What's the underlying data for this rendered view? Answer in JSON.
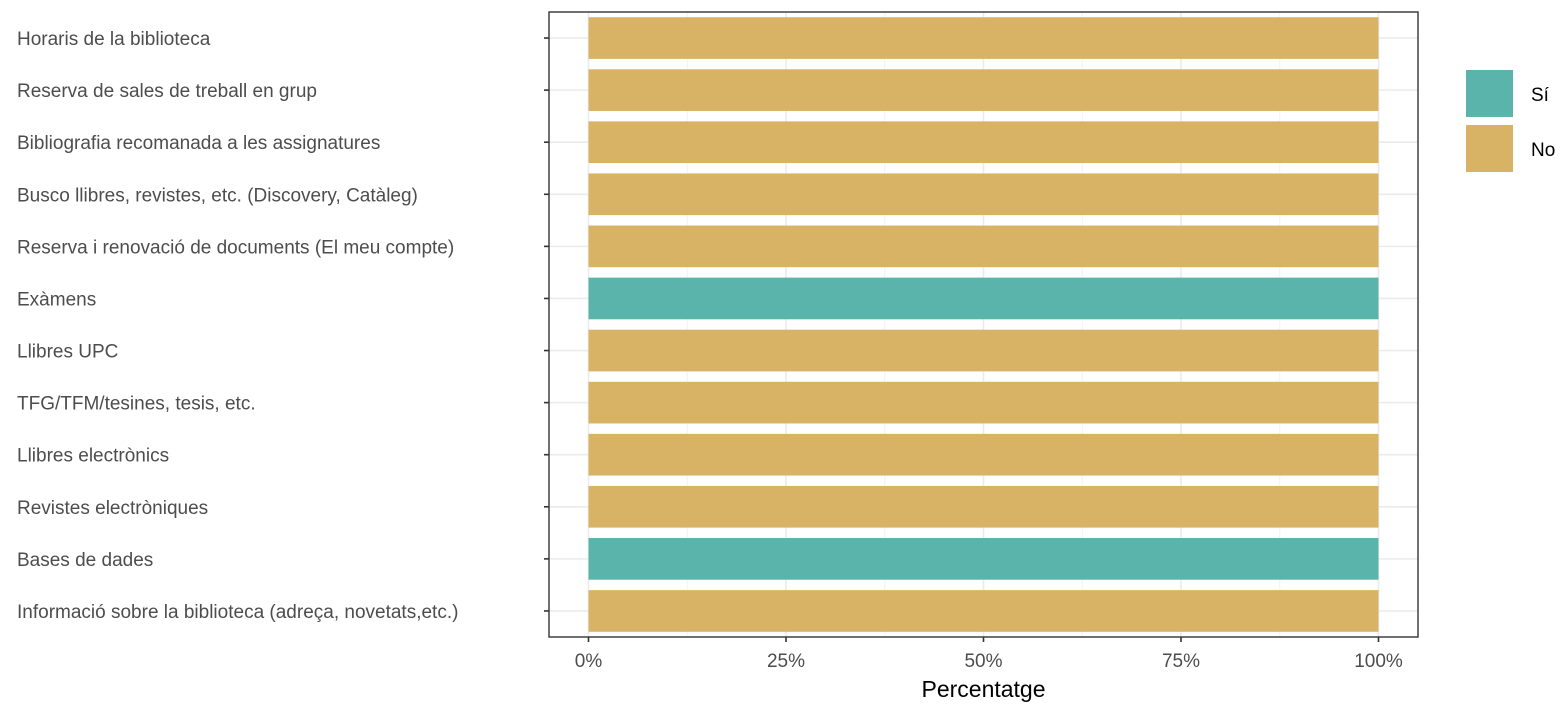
{
  "chart_data": {
    "type": "bar",
    "orientation": "horizontal",
    "stacked": true,
    "categories": [
      "Horaris de la biblioteca",
      "Reserva de sales de treball en grup",
      "Bibliografia recomanada a les assignatures",
      "Busco llibres, revistes, etc. (Discovery, Catàleg)",
      "Reserva i renovació de documents (El meu compte)",
      "Exàmens",
      "Llibres UPC",
      "TFG/TFM/tesines, tesis, etc.",
      "Llibres electrònics",
      "Revistes electròniques",
      "Bases de dades",
      "Informació sobre la biblioteca (adreça, novetats,etc.)"
    ],
    "series": [
      {
        "name": "Sí",
        "color": "#5ab4ac",
        "values": [
          0,
          0,
          0,
          0,
          0,
          100,
          0,
          0,
          0,
          0,
          100,
          0
        ]
      },
      {
        "name": "No",
        "color": "#d8b365",
        "values": [
          100,
          100,
          100,
          100,
          100,
          0,
          100,
          100,
          100,
          100,
          0,
          100
        ]
      }
    ],
    "xlabel": "Percentatge",
    "ylabel": "",
    "xlim": [
      -5,
      105
    ],
    "x_ticks": [
      0,
      25,
      50,
      75,
      100
    ],
    "x_tick_labels": [
      "0%",
      "25%",
      "50%",
      "75%",
      "100%"
    ],
    "grid": true,
    "legend_position": "right"
  }
}
